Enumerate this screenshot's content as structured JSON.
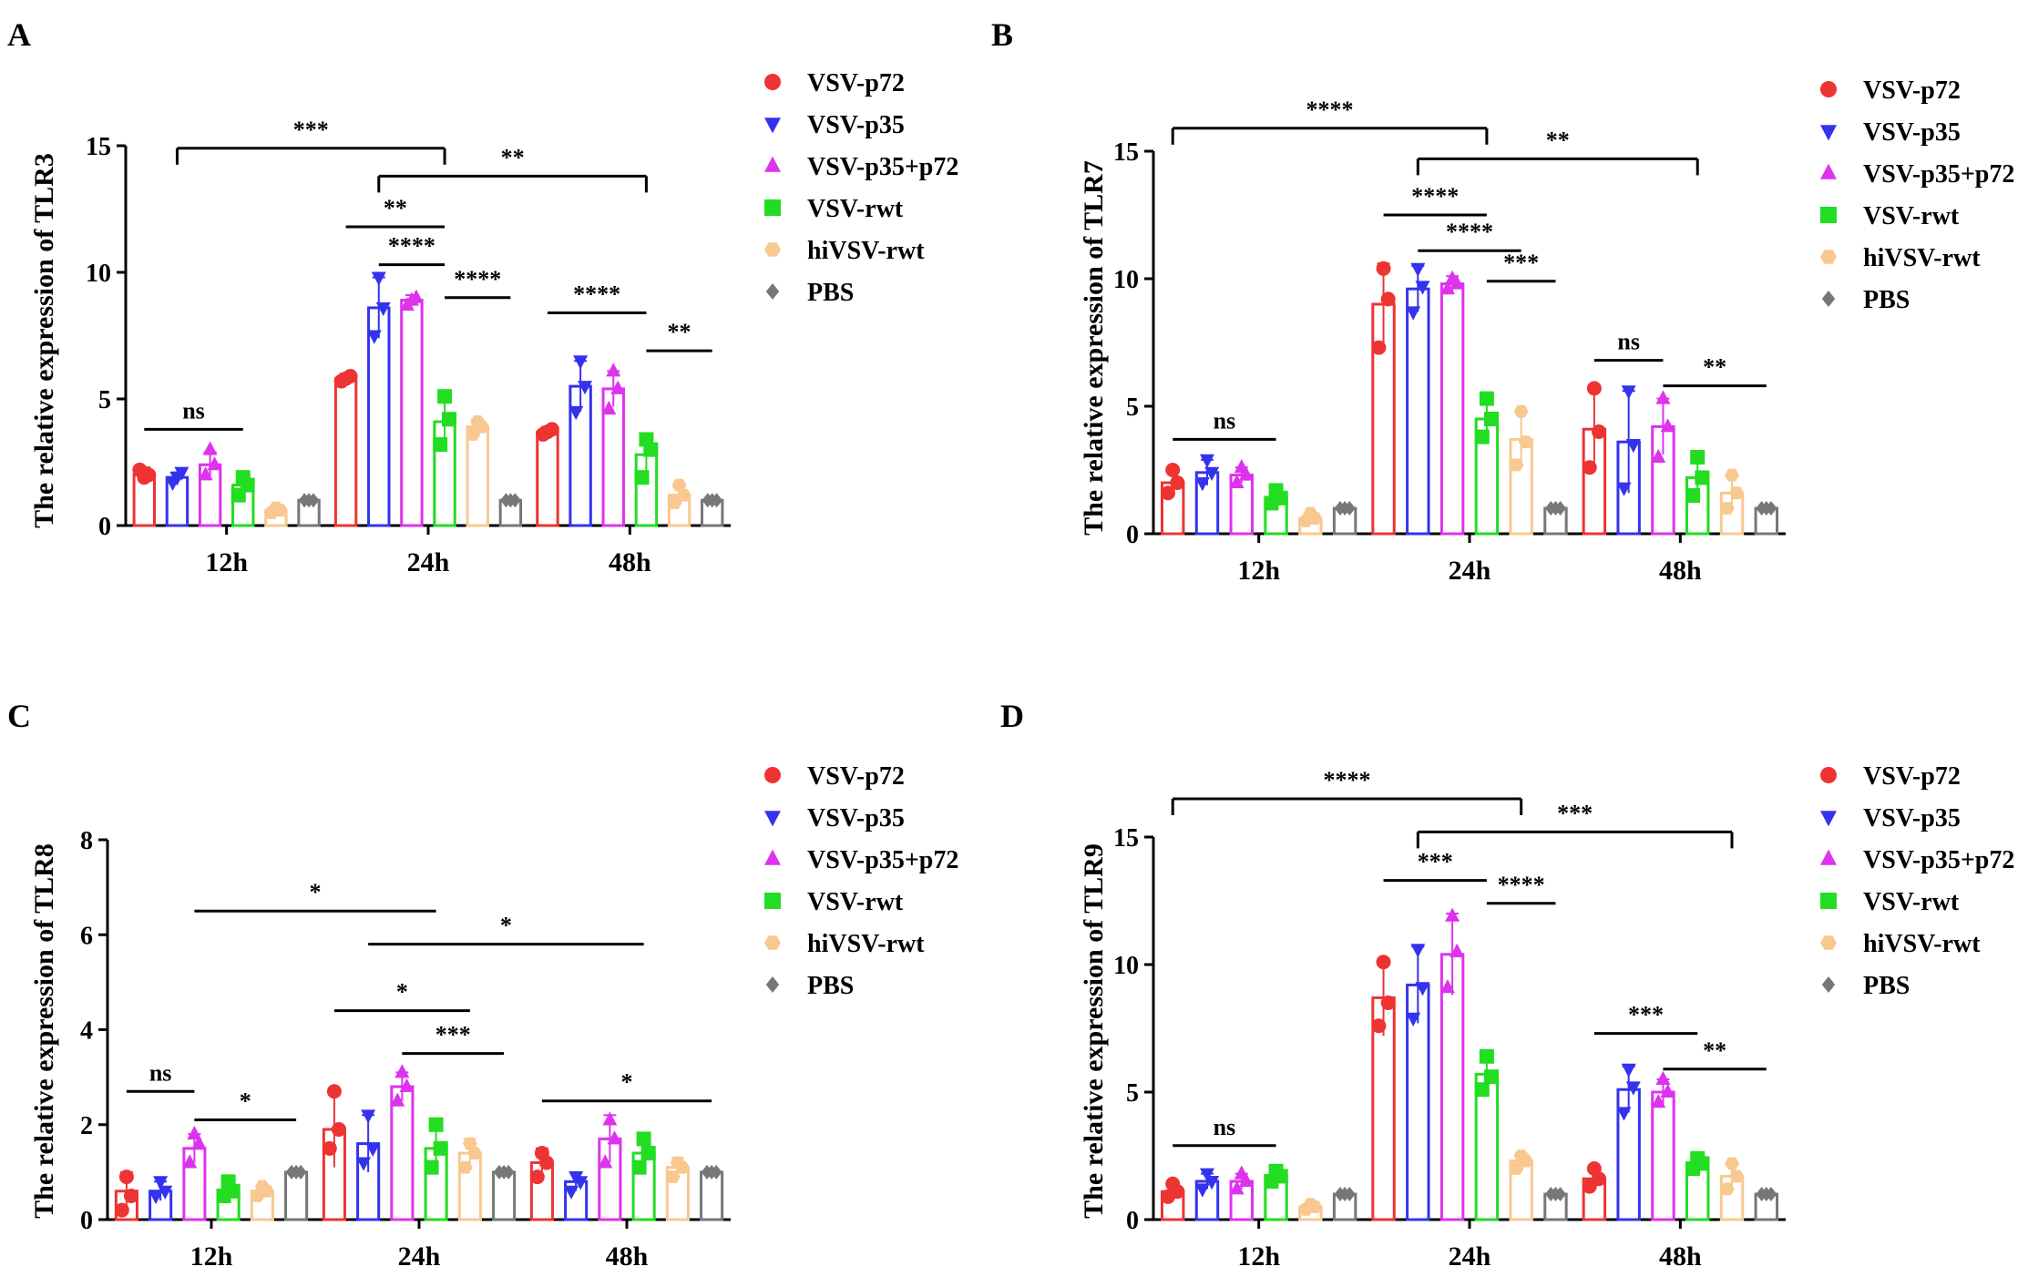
{
  "figure": {
    "description_free": true
  },
  "legend_entries": [
    {
      "name": "VSV-p72",
      "color": "#ee3333",
      "marker": "circle"
    },
    {
      "name": "VSV-p35",
      "color": "#3333ee",
      "marker": "triangle-down"
    },
    {
      "name": "VSV-p35+p72",
      "color": "#dd33ee",
      "marker": "triangle-up"
    },
    {
      "name": "VSV-rwt",
      "color": "#22dd22",
      "marker": "square"
    },
    {
      "name": "hiVSV-rwt",
      "color": "#f8c890",
      "marker": "hexagon"
    },
    {
      "name": "PBS",
      "color": "#777777",
      "marker": "diamond"
    }
  ],
  "chart_data": [
    {
      "type": "bar",
      "panel_label": "A",
      "ylabel": "The relative expression of TLR3",
      "ylim": [
        0,
        15
      ],
      "yticks": [
        0,
        5,
        10,
        15
      ],
      "categories": [
        "12h",
        "24h",
        "48h"
      ],
      "series": [
        {
          "name": "VSV-p72",
          "values": [
            2.0,
            5.8,
            3.7
          ],
          "errors": [
            0.3,
            0.2,
            0.2
          ],
          "points": [
            [
              2.2,
              2.0,
              1.9
            ],
            [
              5.7,
              5.9,
              5.8
            ],
            [
              3.6,
              3.8,
              3.7
            ]
          ]
        },
        {
          "name": "VSV-p35",
          "values": [
            1.9,
            8.6,
            5.5
          ],
          "errors": [
            0.2,
            1.2,
            1.0
          ],
          "points": [
            [
              1.7,
              2.1,
              1.9
            ],
            [
              7.5,
              8.6,
              9.8
            ],
            [
              4.5,
              5.5,
              6.5
            ]
          ]
        },
        {
          "name": "VSV-p35+p72",
          "values": [
            2.4,
            8.9,
            5.4
          ],
          "errors": [
            0.5,
            0.2,
            0.7
          ],
          "points": [
            [
              2.0,
              2.4,
              3.0
            ],
            [
              8.7,
              9.0,
              8.9
            ],
            [
              4.6,
              5.4,
              6.1
            ]
          ]
        },
        {
          "name": "VSV-rwt",
          "values": [
            1.6,
            4.1,
            2.8
          ],
          "errors": [
            0.4,
            0.9,
            0.7
          ],
          "points": [
            [
              1.2,
              1.6,
              1.9
            ],
            [
              3.2,
              4.2,
              5.1
            ],
            [
              1.9,
              3.0,
              3.4
            ]
          ]
        },
        {
          "name": "hiVSV-rwt",
          "values": [
            0.6,
            3.9,
            1.2
          ],
          "errors": [
            0.1,
            0.3,
            0.3
          ],
          "points": [
            [
              0.5,
              0.6,
              0.7
            ],
            [
              3.6,
              3.9,
              4.1
            ],
            [
              0.9,
              1.2,
              1.6
            ]
          ]
        },
        {
          "name": "PBS",
          "values": [
            1.0,
            1.0,
            1.0
          ],
          "errors": [
            0,
            0,
            0
          ],
          "points": [
            [
              1,
              1,
              1
            ],
            [
              1,
              1,
              1
            ],
            [
              1,
              1,
              1
            ]
          ]
        }
      ],
      "annotations": [
        {
          "text": "ns",
          "from": [
            0,
            0
          ],
          "to": [
            0,
            3
          ],
          "y": 3.8
        },
        {
          "text": "***",
          "from": [
            0,
            1
          ],
          "to": [
            1,
            3
          ],
          "y": 14.9
        },
        {
          "text": "**",
          "from": [
            1,
            1
          ],
          "to": [
            2,
            3
          ],
          "y": 13.8
        },
        {
          "text": "**",
          "from": [
            1,
            0
          ],
          "to": [
            1,
            3
          ],
          "y": 11.8
        },
        {
          "text": "****",
          "from": [
            1,
            1
          ],
          "to": [
            1,
            3
          ],
          "y": 10.3
        },
        {
          "text": "****",
          "from": [
            1,
            3
          ],
          "to": [
            1,
            5
          ],
          "y": 9.0
        },
        {
          "text": "****",
          "from": [
            2,
            0
          ],
          "to": [
            2,
            3
          ],
          "y": 8.4
        },
        {
          "text": "**",
          "from": [
            2,
            3
          ],
          "to": [
            2,
            5
          ],
          "y": 6.9
        }
      ]
    },
    {
      "type": "bar",
      "panel_label": "B",
      "ylabel": "The relative expression of TLR7",
      "ylim": [
        0,
        15
      ],
      "yticks": [
        0,
        5,
        10,
        15
      ],
      "categories": [
        "12h",
        "24h",
        "48h"
      ],
      "series": [
        {
          "name": "VSV-p72",
          "values": [
            2.0,
            9.0,
            4.1
          ],
          "errors": [
            0.5,
            1.6,
            1.7
          ],
          "points": [
            [
              1.6,
              2.0,
              2.5
            ],
            [
              7.3,
              9.2,
              10.4
            ],
            [
              2.6,
              4.0,
              5.7
            ]
          ]
        },
        {
          "name": "VSV-p35",
          "values": [
            2.4,
            9.6,
            3.6
          ],
          "errors": [
            0.5,
            0.9,
            2.0
          ],
          "points": [
            [
              2.0,
              2.4,
              2.9
            ],
            [
              8.7,
              9.7,
              10.4
            ],
            [
              1.8,
              3.5,
              5.6
            ]
          ]
        },
        {
          "name": "VSV-p35+p72",
          "values": [
            2.3,
            9.8,
            4.2
          ],
          "errors": [
            0.3,
            0.3,
            1.1
          ],
          "points": [
            [
              2.0,
              2.3,
              2.6
            ],
            [
              9.6,
              9.8,
              10.0
            ],
            [
              3.0,
              4.2,
              5.3
            ]
          ]
        },
        {
          "name": "VSV-rwt",
          "values": [
            1.4,
            4.5,
            2.2
          ],
          "errors": [
            0.3,
            0.8,
            0.8
          ],
          "points": [
            [
              1.2,
              1.4,
              1.7
            ],
            [
              3.8,
              4.5,
              5.3
            ],
            [
              1.5,
              2.2,
              3.0
            ]
          ]
        },
        {
          "name": "hiVSV-rwt",
          "values": [
            0.6,
            3.7,
            1.6
          ],
          "errors": [
            0.1,
            1.1,
            0.7
          ],
          "points": [
            [
              0.5,
              0.6,
              0.8
            ],
            [
              2.7,
              3.6,
              4.8
            ],
            [
              1.0,
              1.6,
              2.3
            ]
          ]
        },
        {
          "name": "PBS",
          "values": [
            1.0,
            1.0,
            1.0
          ],
          "errors": [
            0,
            0,
            0
          ],
          "points": [
            [
              1,
              1,
              1
            ],
            [
              1,
              1,
              1
            ],
            [
              1,
              1,
              1
            ]
          ]
        }
      ],
      "annotations": [
        {
          "text": "ns",
          "from": [
            0,
            0
          ],
          "to": [
            0,
            3
          ],
          "y": 3.7
        },
        {
          "text": "****",
          "from": [
            0,
            0
          ],
          "to": [
            1,
            3
          ],
          "y": 15.9
        },
        {
          "text": "**",
          "from": [
            1,
            1
          ],
          "to": [
            2,
            3
          ],
          "y": 14.7
        },
        {
          "text": "****",
          "from": [
            1,
            0
          ],
          "to": [
            1,
            3
          ],
          "y": 12.5
        },
        {
          "text": "****",
          "from": [
            1,
            1
          ],
          "to": [
            1,
            4
          ],
          "y": 11.1
        },
        {
          "text": "***",
          "from": [
            1,
            3
          ],
          "to": [
            1,
            5
          ],
          "y": 9.9
        },
        {
          "text": "ns",
          "from": [
            2,
            0
          ],
          "to": [
            2,
            2
          ],
          "y": 6.8
        },
        {
          "text": "**",
          "from": [
            2,
            2
          ],
          "to": [
            2,
            5
          ],
          "y": 5.8
        }
      ]
    },
    {
      "type": "bar",
      "panel_label": "C",
      "ylabel": "The relative expression of TLR8",
      "ylim": [
        0,
        8
      ],
      "yticks": [
        0,
        2,
        4,
        6,
        8
      ],
      "categories": [
        "12h",
        "24h",
        "48h"
      ],
      "series": [
        {
          "name": "VSV-p72",
          "values": [
            0.6,
            1.9,
            1.2
          ],
          "errors": [
            0.4,
            0.8,
            0.3
          ],
          "points": [
            [
              0.2,
              0.5,
              0.9
            ],
            [
              1.5,
              1.9,
              2.7
            ],
            [
              0.9,
              1.2,
              1.4
            ]
          ]
        },
        {
          "name": "VSV-p35",
          "values": [
            0.6,
            1.6,
            0.8
          ],
          "errors": [
            0.2,
            0.6,
            0.2
          ],
          "points": [
            [
              0.5,
              0.6,
              0.8
            ],
            [
              1.2,
              1.5,
              2.2
            ],
            [
              0.6,
              0.8,
              0.9
            ]
          ]
        },
        {
          "name": "VSV-p35+p72",
          "values": [
            1.5,
            2.8,
            1.7
          ],
          "errors": [
            0.3,
            0.3,
            0.5
          ],
          "points": [
            [
              1.2,
              1.6,
              1.8
            ],
            [
              2.5,
              2.8,
              3.1
            ],
            [
              1.2,
              1.7,
              2.1
            ]
          ]
        },
        {
          "name": "VSV-rwt",
          "values": [
            0.6,
            1.5,
            1.4
          ],
          "errors": [
            0.2,
            0.5,
            0.3
          ],
          "points": [
            [
              0.5,
              0.6,
              0.8
            ],
            [
              1.1,
              1.5,
              2.0
            ],
            [
              1.1,
              1.4,
              1.7
            ]
          ]
        },
        {
          "name": "hiVSV-rwt",
          "values": [
            0.6,
            1.4,
            1.1
          ],
          "errors": [
            0.1,
            0.3,
            0.2
          ],
          "points": [
            [
              0.5,
              0.6,
              0.7
            ],
            [
              1.1,
              1.4,
              1.6
            ],
            [
              0.9,
              1.1,
              1.2
            ]
          ]
        },
        {
          "name": "PBS",
          "values": [
            1.0,
            1.0,
            1.0
          ],
          "errors": [
            0,
            0,
            0
          ],
          "points": [
            [
              1,
              1,
              1
            ],
            [
              1,
              1,
              1
            ],
            [
              1,
              1,
              1
            ]
          ]
        }
      ],
      "annotations": [
        {
          "text": "ns",
          "from": [
            0,
            0
          ],
          "to": [
            0,
            2
          ],
          "y": 2.7
        },
        {
          "text": "*",
          "from": [
            0,
            2
          ],
          "to": [
            0,
            5
          ],
          "y": 2.1
        },
        {
          "text": "*",
          "from": [
            0,
            2
          ],
          "to": [
            1,
            3
          ],
          "y": 6.5
        },
        {
          "text": "*",
          "from": [
            1,
            1
          ],
          "to": [
            2,
            3
          ],
          "y": 5.8
        },
        {
          "text": "*",
          "from": [
            1,
            0
          ],
          "to": [
            1,
            4
          ],
          "y": 4.4
        },
        {
          "text": "***",
          "from": [
            1,
            2
          ],
          "to": [
            1,
            5
          ],
          "y": 3.5
        },
        {
          "text": "*",
          "from": [
            2,
            0
          ],
          "to": [
            2,
            5
          ],
          "y": 2.5
        }
      ]
    },
    {
      "type": "bar",
      "panel_label": "D",
      "ylabel": "The relative expression of TLR9",
      "ylim": [
        0,
        15
      ],
      "yticks": [
        0,
        5,
        10,
        15
      ],
      "categories": [
        "12h",
        "24h",
        "48h"
      ],
      "series": [
        {
          "name": "VSV-p72",
          "values": [
            1.1,
            8.7,
            1.6
          ],
          "errors": [
            0.3,
            1.5,
            0.4
          ],
          "points": [
            [
              0.9,
              1.1,
              1.4
            ],
            [
              7.6,
              8.5,
              10.1
            ],
            [
              1.3,
              1.6,
              2.0
            ]
          ]
        },
        {
          "name": "VSV-p35",
          "values": [
            1.5,
            9.2,
            5.1
          ],
          "errors": [
            0.3,
            1.5,
            0.9
          ],
          "points": [
            [
              1.2,
              1.5,
              1.8
            ],
            [
              7.9,
              9.1,
              10.6
            ],
            [
              4.2,
              5.2,
              5.9
            ]
          ]
        },
        {
          "name": "VSV-p35+p72",
          "values": [
            1.5,
            10.4,
            5.0
          ],
          "errors": [
            0.3,
            1.6,
            0.5
          ],
          "points": [
            [
              1.2,
              1.5,
              1.8
            ],
            [
              9.1,
              10.5,
              11.9
            ],
            [
              4.6,
              5.0,
              5.5
            ]
          ]
        },
        {
          "name": "VSV-rwt",
          "values": [
            1.7,
            5.7,
            2.2
          ],
          "errors": [
            0.2,
            0.7,
            0.3
          ],
          "points": [
            [
              1.5,
              1.7,
              1.9
            ],
            [
              5.1,
              5.6,
              6.4
            ],
            [
              2.0,
              2.2,
              2.4
            ]
          ]
        },
        {
          "name": "hiVSV-rwt",
          "values": [
            0.5,
            2.3,
            1.7
          ],
          "errors": [
            0.1,
            0.3,
            0.5
          ],
          "points": [
            [
              0.4,
              0.5,
              0.6
            ],
            [
              2.0,
              2.3,
              2.5
            ],
            [
              1.2,
              1.7,
              2.2
            ]
          ]
        },
        {
          "name": "PBS",
          "values": [
            1.0,
            1.0,
            1.0
          ],
          "errors": [
            0,
            0,
            0
          ],
          "points": [
            [
              1,
              1,
              1
            ],
            [
              1,
              1,
              1
            ],
            [
              1,
              1,
              1
            ]
          ]
        }
      ],
      "annotations": [
        {
          "text": "ns",
          "from": [
            0,
            0
          ],
          "to": [
            0,
            3
          ],
          "y": 2.9
        },
        {
          "text": "****",
          "from": [
            0,
            0
          ],
          "to": [
            1,
            4
          ],
          "y": 16.5
        },
        {
          "text": "***",
          "from": [
            1,
            1
          ],
          "to": [
            2,
            4
          ],
          "y": 15.2
        },
        {
          "text": "***",
          "from": [
            1,
            0
          ],
          "to": [
            1,
            3
          ],
          "y": 13.3
        },
        {
          "text": "****",
          "from": [
            1,
            3
          ],
          "to": [
            1,
            5
          ],
          "y": 12.4
        },
        {
          "text": "***",
          "from": [
            2,
            0
          ],
          "to": [
            2,
            3
          ],
          "y": 7.3
        },
        {
          "text": "**",
          "from": [
            2,
            2
          ],
          "to": [
            2,
            5
          ],
          "y": 5.9
        }
      ]
    }
  ]
}
